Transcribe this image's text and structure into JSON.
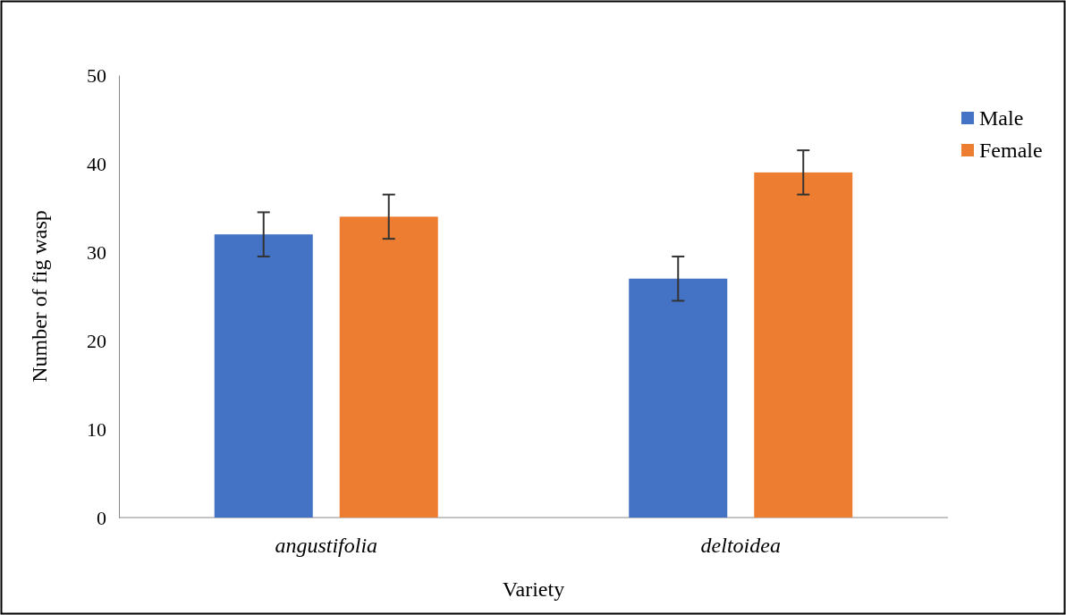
{
  "chart_data": {
    "type": "bar",
    "xlabel": "Variety",
    "ylabel": "Number of fig wasp",
    "categories": [
      "angustifolia",
      "deltoidea"
    ],
    "series": [
      {
        "name": "Male",
        "color": "#4472c4",
        "values": [
          32,
          27
        ],
        "errors": [
          2.5,
          2.5
        ]
      },
      {
        "name": "Female",
        "color": "#ed7d31",
        "values": [
          34,
          39
        ],
        "errors": [
          2.5,
          2.5
        ]
      }
    ],
    "ylim": [
      0,
      50
    ],
    "yticks": [
      0,
      10,
      20,
      30,
      40,
      50
    ],
    "legend": "top right"
  }
}
